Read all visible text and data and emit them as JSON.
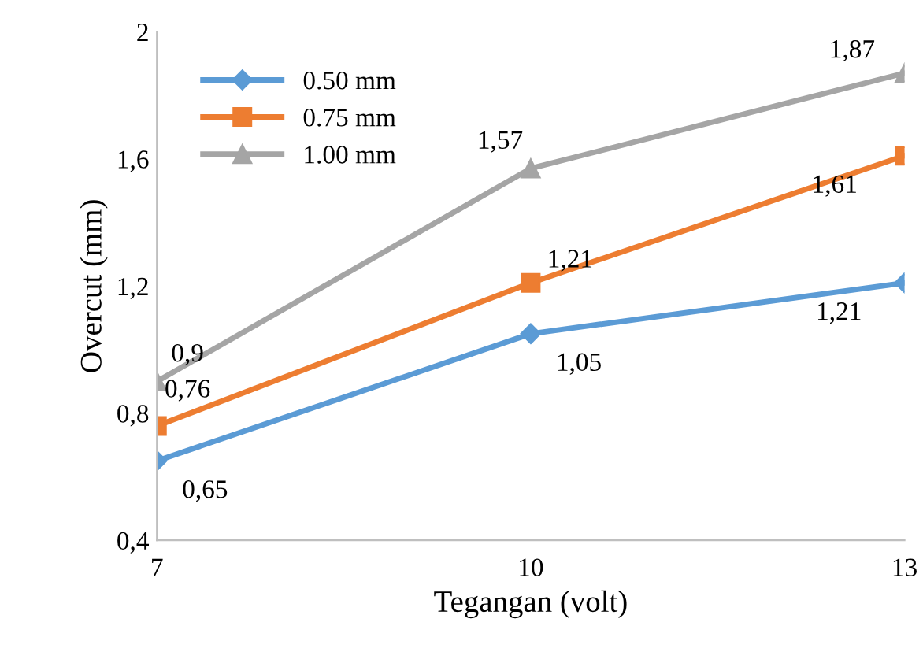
{
  "chart_data": {
    "type": "line",
    "xlabel": "Tegangan (volt)",
    "ylabel": "Overcut (mm)",
    "x": [
      7,
      10,
      13
    ],
    "xlim": [
      7,
      13
    ],
    "xticks": [
      7,
      10,
      13
    ],
    "ylim": [
      0.4,
      2
    ],
    "yticks": [
      {
        "value": 0.4,
        "label": "0,4"
      },
      {
        "value": 0.8,
        "label": "0,8"
      },
      {
        "value": 1.2,
        "label": "1,2"
      },
      {
        "value": 1.6,
        "label": "1,6"
      },
      2
    ],
    "grid": false,
    "legend": "top left",
    "line_style": "solid",
    "series": [
      {
        "name": "0.50 mm",
        "color": "#5b9bd5",
        "marker": "diamond",
        "values": [
          0.65,
          1.05,
          1.21
        ],
        "value_labels": [
          "0,65",
          "1,05",
          "1,21"
        ]
      },
      {
        "name": "0.75 mm",
        "color": "#ed7d31",
        "marker": "square",
        "values": [
          0.76,
          1.21,
          1.61
        ],
        "value_labels": [
          "0,76",
          "1,21",
          "1,61"
        ]
      },
      {
        "name": "1.00 mm",
        "color": "#a5a5a5",
        "marker": "triangle",
        "values": [
          0.9,
          1.57,
          1.87
        ],
        "value_labels": [
          "0,9",
          "1,57",
          "1,87"
        ]
      }
    ]
  }
}
